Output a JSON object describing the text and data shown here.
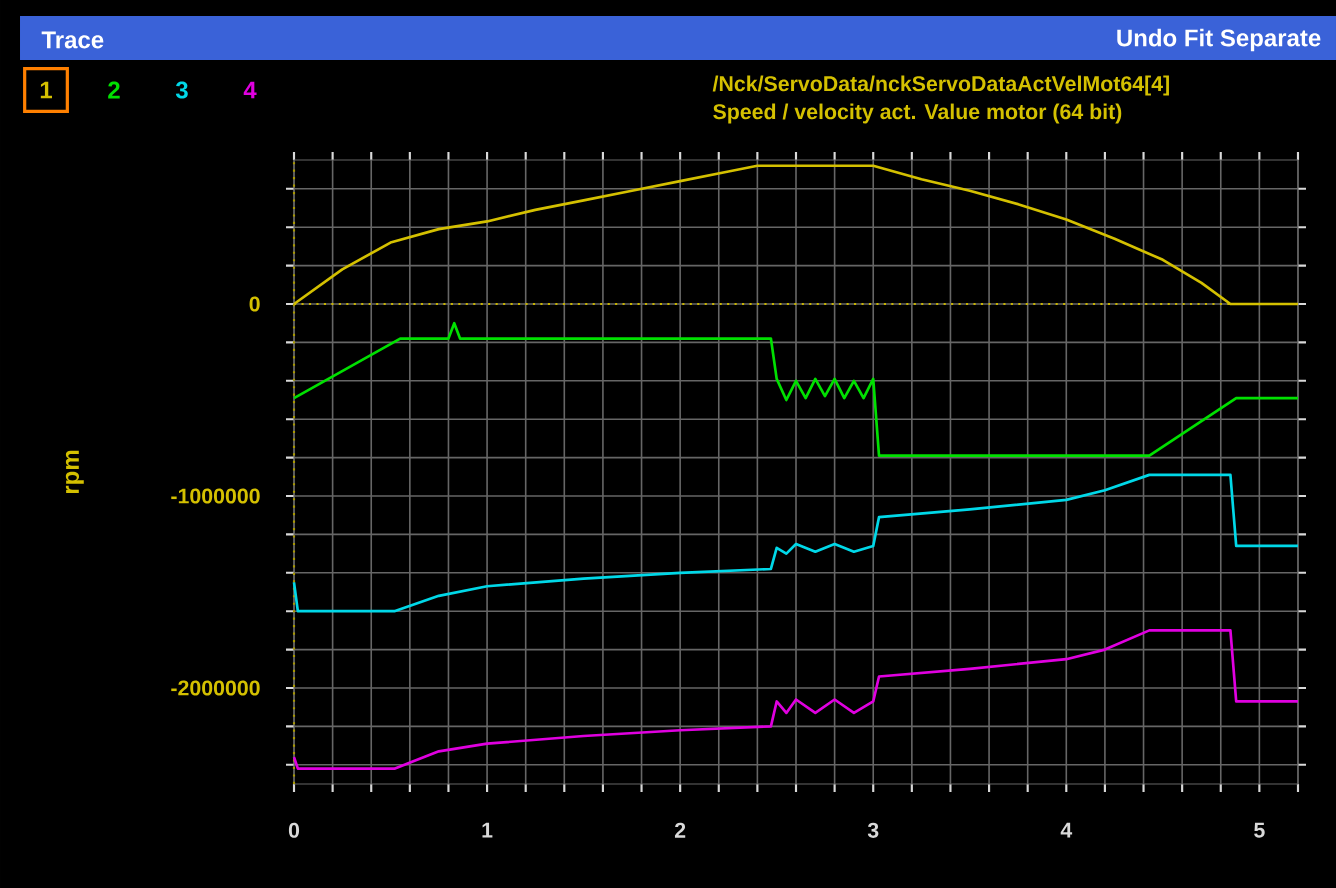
{
  "chart_data": {
    "type": "line",
    "title": "Trace",
    "subtitle": "/Nck/ServoData/nckServoDataActVelMot64[4]",
    "ylabel": "rpm",
    "annotations": [
      "Speed / velocity act. Value motor (64 bit)",
      "Undo Fit Separate"
    ],
    "xlim": [
      0,
      5.2
    ],
    "ylim": [
      -2500000,
      750000
    ],
    "xticks": [
      0,
      {
        "value": 0.2,
        "label": null
      },
      {
        "value": 0.4,
        "label": null
      },
      {
        "value": 0.6,
        "label": null
      },
      {
        "value": 0.8,
        "label": null
      },
      1,
      {
        "value": 1.2,
        "label": null
      },
      {
        "value": 1.4,
        "label": null
      },
      {
        "value": 1.6,
        "label": null
      },
      {
        "value": 1.8,
        "label": null
      },
      2,
      {
        "value": 2.2,
        "label": null
      },
      {
        "value": 2.4,
        "label": null
      },
      {
        "value": 2.6,
        "label": null
      },
      {
        "value": 2.8,
        "label": null
      },
      3,
      {
        "value": 3.2,
        "label": null
      },
      {
        "value": 3.4,
        "label": null
      },
      {
        "value": 3.6,
        "label": null
      },
      {
        "value": 3.8,
        "label": null
      },
      4,
      {
        "value": 4.2,
        "label": null
      },
      {
        "value": 4.4,
        "label": null
      },
      {
        "value": 4.6,
        "label": null
      },
      {
        "value": 4.8,
        "label": null
      },
      5,
      {
        "value": 5.2,
        "label": null
      }
    ],
    "yticks": [
      {
        "value": 600000,
        "label": null
      },
      {
        "value": 400000,
        "label": null
      },
      {
        "value": 200000,
        "label": null
      },
      0,
      {
        "value": -200000,
        "label": null
      },
      {
        "value": -400000,
        "label": null
      },
      {
        "value": -600000,
        "label": null
      },
      {
        "value": -800000,
        "label": null
      },
      -1000000,
      {
        "value": -1200000,
        "label": null
      },
      {
        "value": -1400000,
        "label": null
      },
      {
        "value": -1600000,
        "label": null
      },
      {
        "value": -1800000,
        "label": null
      },
      -2000000,
      {
        "value": -2200000,
        "label": null
      },
      {
        "value": -2400000,
        "label": null
      }
    ],
    "grid": true,
    "legend": "top left",
    "marker": "none",
    "line_style": "solid",
    "ref_lines": [
      {
        "axis": "y",
        "value": 0,
        "color": "#c8b400",
        "line_style": "dotted"
      },
      {
        "axis": "x",
        "value": 0,
        "color": "#a89800",
        "line_style": "dotted"
      }
    ],
    "series": [
      {
        "name": "1",
        "color": "#d4c000",
        "x": [
          0,
          0.25,
          0.5,
          0.75,
          1,
          1.25,
          1.5,
          1.75,
          2,
          2.25,
          2.4,
          2.7,
          3.0,
          3.25,
          3.5,
          3.75,
          4,
          4.25,
          4.5,
          4.7,
          4.85,
          5.2
        ],
        "values": [
          0,
          180000,
          320000,
          390000,
          430000,
          490000,
          540000,
          590000,
          640000,
          690000,
          720000,
          720000,
          720000,
          650000,
          590000,
          520000,
          440000,
          340000,
          230000,
          110000,
          0,
          0
        ]
      },
      {
        "name": "2",
        "color": "#00e000",
        "x": [
          0,
          0.55,
          0.8,
          0.83,
          0.86,
          2.47,
          2.5,
          2.55,
          2.6,
          2.65,
          2.7,
          2.75,
          2.8,
          2.85,
          2.9,
          2.95,
          3.0,
          3.03,
          4.43,
          4.88,
          5.2
        ],
        "values": [
          -490000,
          -180000,
          -180000,
          -100000,
          -180000,
          -180000,
          -390000,
          -500000,
          -400000,
          -490000,
          -390000,
          -480000,
          -390000,
          -490000,
          -400000,
          -490000,
          -390000,
          -790000,
          -790000,
          -490000,
          -490000
        ]
      },
      {
        "name": "3",
        "color": "#00d8e8",
        "x": [
          0,
          0.02,
          0.52,
          0.75,
          1,
          1.5,
          2,
          2.47,
          2.5,
          2.55,
          2.6,
          2.7,
          2.8,
          2.9,
          3.0,
          3.03,
          3.5,
          4,
          4.2,
          4.43,
          4.85,
          4.88,
          5.2
        ],
        "values": [
          -1450000,
          -1600000,
          -1600000,
          -1520000,
          -1470000,
          -1430000,
          -1400000,
          -1380000,
          -1270000,
          -1300000,
          -1250000,
          -1290000,
          -1250000,
          -1290000,
          -1260000,
          -1110000,
          -1070000,
          -1020000,
          -970000,
          -890000,
          -890000,
          -1260000,
          -1260000
        ]
      },
      {
        "name": "4",
        "color": "#e000e0",
        "x": [
          0,
          0.02,
          0.52,
          0.75,
          1,
          1.5,
          2,
          2.47,
          2.5,
          2.55,
          2.6,
          2.7,
          2.8,
          2.9,
          3.0,
          3.03,
          3.5,
          4,
          4.2,
          4.43,
          4.85,
          4.88,
          5.2
        ],
        "values": [
          -2360000,
          -2420000,
          -2420000,
          -2330000,
          -2290000,
          -2250000,
          -2220000,
          -2200000,
          -2070000,
          -2130000,
          -2060000,
          -2130000,
          -2060000,
          -2130000,
          -2070000,
          -1940000,
          -1900000,
          -1850000,
          -1800000,
          -1700000,
          -1700000,
          -2070000,
          -2070000
        ]
      }
    ]
  }
}
